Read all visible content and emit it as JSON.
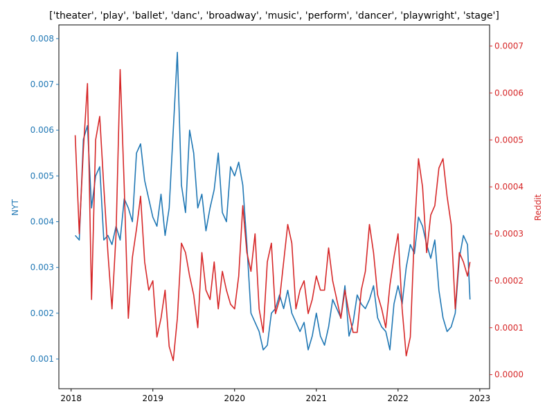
{
  "chart_data": {
    "type": "line",
    "title": "['theater', 'play', 'ballet', 'danc', 'broadway', 'music', 'perform', 'dancer', 'playwright', 'stage']",
    "xlabel": "",
    "xlim": [
      2017.85,
      2023.12
    ],
    "x_ticks": [
      "2018",
      "2019",
      "2020",
      "2021",
      "2022",
      "2023"
    ],
    "y_left": {
      "label": "NYT",
      "color": "#1f77b4",
      "lim": [
        0.00035,
        0.0083
      ],
      "ticks": [
        "0.001",
        "0.002",
        "0.003",
        "0.004",
        "0.005",
        "0.006",
        "0.007",
        "0.008"
      ]
    },
    "y_right": {
      "label": "Reddit",
      "color": "#d62728",
      "lim": [
        -3e-05,
        0.000745
      ],
      "ticks": [
        "0.0000",
        "0.0001",
        "0.0002",
        "0.0003",
        "0.0004",
        "0.0005",
        "0.0006",
        "0.0007"
      ]
    },
    "grid": false,
    "series": [
      {
        "name": "NYT",
        "axis": "left",
        "color": "#1f77b4",
        "x": [
          2018.05,
          2018.1,
          2018.15,
          2018.2,
          2018.25,
          2018.3,
          2018.35,
          2018.4,
          2018.45,
          2018.5,
          2018.55,
          2018.6,
          2018.65,
          2018.7,
          2018.75,
          2018.8,
          2018.85,
          2018.9,
          2018.95,
          2019.0,
          2019.05,
          2019.1,
          2019.15,
          2019.2,
          2019.25,
          2019.3,
          2019.35,
          2019.4,
          2019.45,
          2019.5,
          2019.55,
          2019.6,
          2019.65,
          2019.7,
          2019.75,
          2019.8,
          2019.85,
          2019.9,
          2019.95,
          2020.0,
          2020.05,
          2020.1,
          2020.15,
          2020.2,
          2020.25,
          2020.3,
          2020.35,
          2020.4,
          2020.45,
          2020.5,
          2020.55,
          2020.6,
          2020.65,
          2020.7,
          2020.75,
          2020.8,
          2020.85,
          2020.9,
          2020.95,
          2021.0,
          2021.05,
          2021.1,
          2021.15,
          2021.2,
          2021.25,
          2021.3,
          2021.35,
          2021.4,
          2021.45,
          2021.5,
          2021.55,
          2021.6,
          2021.65,
          2021.7,
          2021.75,
          2021.8,
          2021.85,
          2021.9,
          2021.95,
          2022.0,
          2022.05,
          2022.1,
          2022.15,
          2022.2,
          2022.25,
          2022.3,
          2022.35,
          2022.4,
          2022.45,
          2022.5,
          2022.55,
          2022.6,
          2022.65,
          2022.7,
          2022.75,
          2022.8,
          2022.85,
          2022.88
        ],
        "values": [
          0.0037,
          0.0036,
          0.0058,
          0.0061,
          0.0043,
          0.005,
          0.0052,
          0.0036,
          0.0037,
          0.0035,
          0.0039,
          0.0036,
          0.0045,
          0.0043,
          0.004,
          0.0055,
          0.0057,
          0.0049,
          0.0045,
          0.0041,
          0.0039,
          0.0046,
          0.0037,
          0.0043,
          0.006,
          0.0077,
          0.0048,
          0.0042,
          0.006,
          0.0055,
          0.0043,
          0.0046,
          0.0038,
          0.0043,
          0.0047,
          0.0055,
          0.0042,
          0.004,
          0.0052,
          0.005,
          0.0053,
          0.0048,
          0.0035,
          0.002,
          0.0018,
          0.0016,
          0.0012,
          0.0013,
          0.002,
          0.0021,
          0.0024,
          0.0021,
          0.0025,
          0.002,
          0.0018,
          0.0016,
          0.0018,
          0.0012,
          0.0015,
          0.002,
          0.0015,
          0.0013,
          0.0017,
          0.0023,
          0.0021,
          0.0019,
          0.0026,
          0.0015,
          0.0018,
          0.0024,
          0.0022,
          0.0021,
          0.0023,
          0.0026,
          0.0019,
          0.0017,
          0.0016,
          0.0012,
          0.0022,
          0.0026,
          0.0022,
          0.003,
          0.0035,
          0.0033,
          0.0041,
          0.0039,
          0.0035,
          0.0032,
          0.0036,
          0.0025,
          0.0019,
          0.0016,
          0.0017,
          0.002,
          0.0032,
          0.0037,
          0.0035,
          0.0023
        ]
      },
      {
        "name": "Reddit",
        "axis": "right",
        "color": "#d62728",
        "x": [
          2018.05,
          2018.1,
          2018.15,
          2018.2,
          2018.25,
          2018.3,
          2018.35,
          2018.4,
          2018.45,
          2018.5,
          2018.55,
          2018.6,
          2018.65,
          2018.7,
          2018.75,
          2018.8,
          2018.85,
          2018.9,
          2018.95,
          2019.0,
          2019.05,
          2019.1,
          2019.15,
          2019.2,
          2019.25,
          2019.3,
          2019.35,
          2019.4,
          2019.45,
          2019.5,
          2019.55,
          2019.6,
          2019.65,
          2019.7,
          2019.75,
          2019.8,
          2019.85,
          2019.9,
          2019.95,
          2020.0,
          2020.05,
          2020.1,
          2020.15,
          2020.2,
          2020.25,
          2020.3,
          2020.35,
          2020.4,
          2020.45,
          2020.5,
          2020.55,
          2020.6,
          2020.65,
          2020.7,
          2020.75,
          2020.8,
          2020.85,
          2020.9,
          2020.95,
          2021.0,
          2021.05,
          2021.1,
          2021.15,
          2021.2,
          2021.25,
          2021.3,
          2021.35,
          2021.4,
          2021.45,
          2021.5,
          2021.55,
          2021.6,
          2021.65,
          2021.7,
          2021.75,
          2021.8,
          2021.85,
          2021.9,
          2021.95,
          2022.0,
          2022.05,
          2022.1,
          2022.15,
          2022.2,
          2022.25,
          2022.3,
          2022.35,
          2022.4,
          2022.45,
          2022.5,
          2022.55,
          2022.6,
          2022.65,
          2022.7,
          2022.75,
          2022.8,
          2022.85,
          2022.88
        ],
        "values": [
          0.00051,
          0.0003,
          0.00048,
          0.00062,
          0.00016,
          0.0005,
          0.00055,
          0.0004,
          0.00026,
          0.00014,
          0.0003,
          0.00065,
          0.0004,
          0.00012,
          0.00025,
          0.00031,
          0.00038,
          0.00024,
          0.00018,
          0.0002,
          8e-05,
          0.00012,
          0.00018,
          6e-05,
          3e-05,
          0.00012,
          0.00028,
          0.00026,
          0.00021,
          0.00017,
          0.0001,
          0.00026,
          0.00018,
          0.00016,
          0.00024,
          0.00014,
          0.00022,
          0.00018,
          0.00015,
          0.00014,
          0.00021,
          0.00036,
          0.00026,
          0.00022,
          0.0003,
          0.00014,
          9e-05,
          0.00024,
          0.00028,
          0.00013,
          0.00016,
          0.00024,
          0.00032,
          0.00028,
          0.00014,
          0.00018,
          0.0002,
          0.00013,
          0.00016,
          0.00021,
          0.00018,
          0.00018,
          0.00027,
          0.0002,
          0.00016,
          0.00012,
          0.00018,
          0.00013,
          9e-05,
          9e-05,
          0.00018,
          0.00022,
          0.00032,
          0.00026,
          0.00017,
          0.00014,
          0.0001,
          0.00019,
          0.00025,
          0.0003,
          0.00014,
          4e-05,
          8e-05,
          0.0003,
          0.00046,
          0.0004,
          0.00026,
          0.00034,
          0.00036,
          0.00044,
          0.00046,
          0.00038,
          0.00032,
          0.00014,
          0.00026,
          0.00024,
          0.00021,
          0.00024
        ]
      }
    ]
  }
}
